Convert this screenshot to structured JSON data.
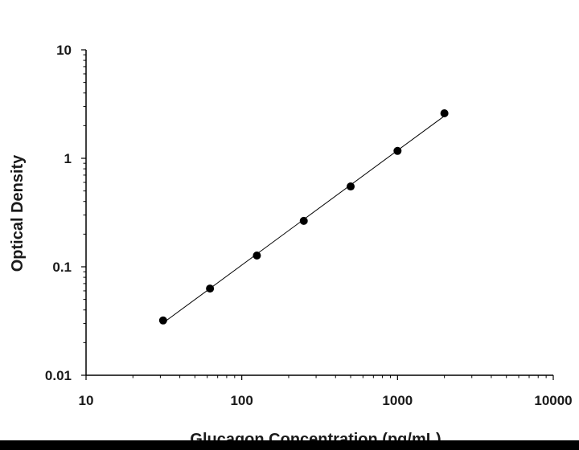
{
  "chart_data": {
    "type": "scatter",
    "title": "",
    "xlabel": "Glucagon Concentration (pg/mL)",
    "ylabel": "Optical Density",
    "x_scale": "log",
    "y_scale": "log",
    "xlim": [
      10,
      10000
    ],
    "ylim": [
      0.01,
      10
    ],
    "x_ticks": [
      "10",
      "100",
      "1000",
      "10000"
    ],
    "y_ticks": [
      "0.01",
      "0.1",
      "1",
      "10"
    ],
    "grid": false,
    "legend": "none",
    "trendline": true,
    "colors": {
      "marker": "#000000",
      "line": "#000000",
      "axis": "#000000"
    },
    "series": [
      {
        "x": [
          31.25,
          62.5,
          125,
          250,
          500,
          1000,
          2000
        ],
        "y": [
          0.032,
          0.063,
          0.127,
          0.265,
          0.55,
          1.17,
          2.6
        ]
      }
    ]
  }
}
